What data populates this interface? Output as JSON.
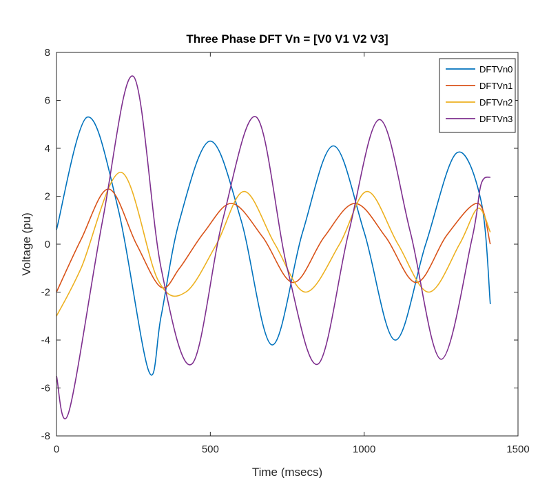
{
  "chart_data": {
    "type": "line",
    "title": "Three Phase DFT Vn = [V0 V1 V2 V3]",
    "xlabel": "Time (msecs)",
    "ylabel": "Voltage (pu)",
    "xlim": [
      0,
      1500
    ],
    "ylim": [
      -8,
      8
    ],
    "xticks": [
      0,
      500,
      1000,
      1500
    ],
    "yticks": [
      -8,
      -6,
      -4,
      -2,
      0,
      2,
      4,
      6,
      8
    ],
    "grid": false,
    "legend_position": "top-right",
    "series": [
      {
        "name": "DFTVn0",
        "color": "#0072BD",
        "x": [
          0,
          100,
          200,
          300,
          340,
          400,
          500,
          600,
          700,
          800,
          900,
          1000,
          1100,
          1200,
          1300,
          1380,
          1410
        ],
        "y": [
          0.6,
          5.3,
          1.5,
          -5.3,
          -3.0,
          1.0,
          4.3,
          1.0,
          -4.2,
          0.5,
          4.1,
          0.5,
          -4.0,
          0.0,
          3.8,
          1.8,
          -2.5
        ]
      },
      {
        "name": "DFTVn1",
        "color": "#D95319",
        "x": [
          0,
          80,
          170,
          260,
          340,
          400,
          480,
          570,
          670,
          770,
          870,
          970,
          1070,
          1170,
          1270,
          1370,
          1410
        ],
        "y": [
          -2.0,
          0.2,
          2.3,
          0.0,
          -1.8,
          -1.0,
          0.5,
          1.7,
          0.3,
          -1.6,
          0.3,
          1.7,
          0.3,
          -1.6,
          0.4,
          1.7,
          0.0
        ]
      },
      {
        "name": "DFTVn2",
        "color": "#EDB120",
        "x": [
          0,
          80,
          210,
          330,
          420,
          520,
          610,
          710,
          810,
          920,
          1010,
          1110,
          1210,
          1310,
          1370,
          1410
        ],
        "y": [
          -3.0,
          -1.0,
          3.0,
          -1.5,
          -2.0,
          0.0,
          2.2,
          0.0,
          -2.0,
          0.0,
          2.2,
          0.0,
          -2.0,
          0.0,
          1.5,
          0.5
        ]
      },
      {
        "name": "DFTVn3",
        "color": "#7E2F8E",
        "x": [
          0,
          40,
          150,
          250,
          340,
          440,
          540,
          650,
          750,
          850,
          950,
          1050,
          1150,
          1250,
          1350,
          1380,
          1410
        ],
        "y": [
          -5.5,
          -7.0,
          1.0,
          7.0,
          -1.0,
          -5.0,
          1.0,
          5.3,
          -1.0,
          -5.0,
          0.5,
          5.2,
          0.5,
          -4.8,
          0.2,
          2.5,
          2.8
        ]
      }
    ]
  }
}
